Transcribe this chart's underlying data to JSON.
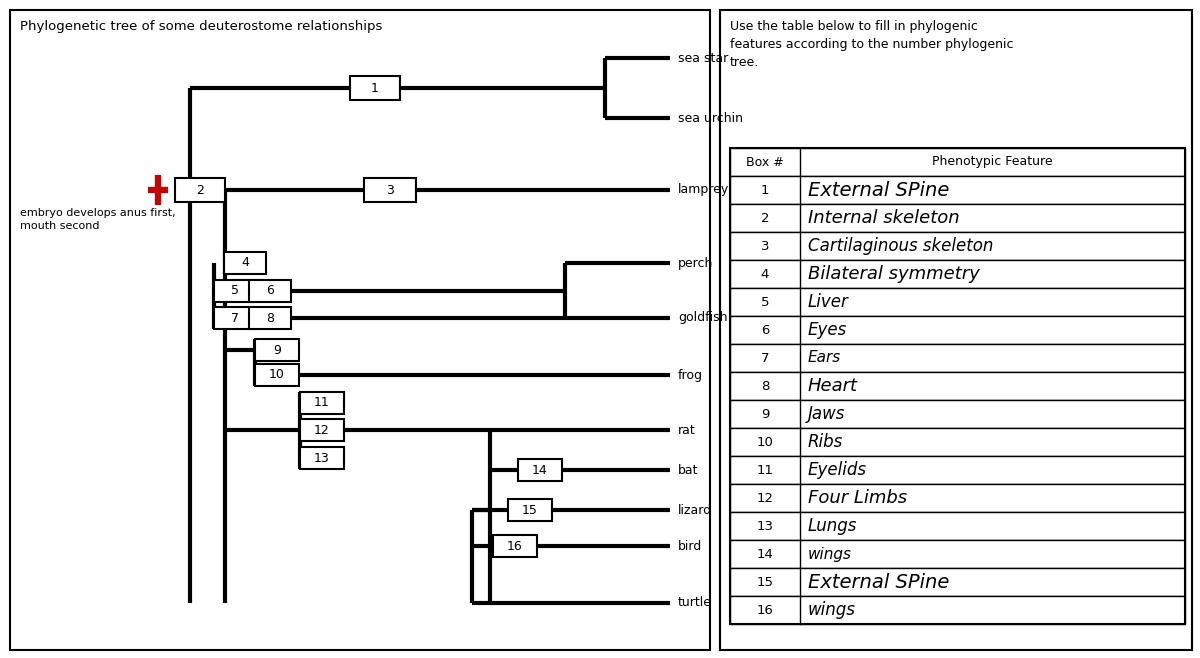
{
  "title": "Phylogenetic tree of some deuterostome relationships",
  "right_text": "Use the table below to fill in phylogenic\nfeatures according to the number phylogenic\ntree.",
  "embryo_text": "embryo develops anus first,\nmouth second",
  "taxa_names": [
    "sea star",
    "sea urchin",
    "lamprey",
    "perch",
    "goldfish",
    "frog",
    "rat",
    "bat",
    "lizard",
    "bird",
    "turtle"
  ],
  "table_features": [
    "External SPine",
    "Internal skeleton",
    "Cartilaginous skeleton",
    "Bilateral symmetry",
    "Liver",
    "Eyes",
    "Ears",
    "Heart",
    "Jaws",
    "Ribs",
    "Eyelids",
    "Four Limbs",
    "Lungs",
    "wings",
    "External SPine",
    "wings"
  ],
  "line_color": "#000000",
  "line_width": 3.0,
  "background_color": "#ffffff",
  "border_color": "#000000",
  "red_color": "#cc0000"
}
